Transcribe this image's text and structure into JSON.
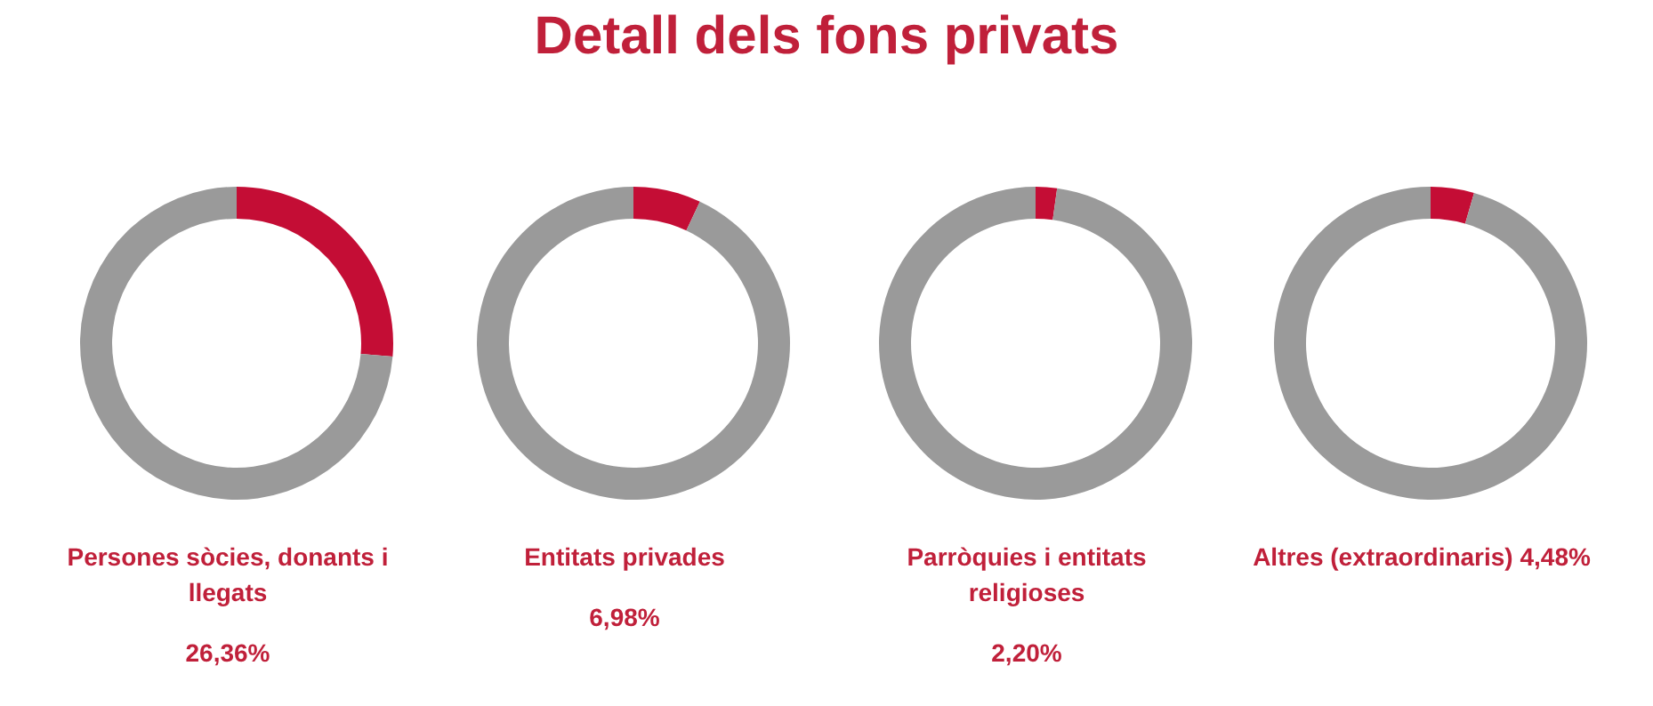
{
  "chart_data": [
    {
      "type": "donut",
      "title": "Detall dels fons privats",
      "xlabel": "Persones sòcies, donants i llegats",
      "categories": [
        null,
        null
      ],
      "values": [
        26.36,
        73.64
      ],
      "colors": [
        "#c40d35",
        "#9a9a9a"
      ],
      "annotations": [
        "26,36%"
      ]
    },
    {
      "type": "donut",
      "xlabel": "Entitats privades",
      "categories": [
        null,
        null
      ],
      "values": [
        6.98,
        93.02
      ],
      "colors": [
        "#c40d35",
        "#9a9a9a"
      ],
      "annotations": [
        "6,98%"
      ]
    },
    {
      "type": "donut",
      "xlabel": "Parròquies i entitats religioses",
      "categories": [
        null,
        null
      ],
      "values": [
        2.2,
        97.8
      ],
      "colors": [
        "#c40d35",
        "#9a9a9a"
      ],
      "annotations": [
        "2,20%"
      ]
    },
    {
      "type": "donut",
      "xlabel": "Altres (extraordinaris)",
      "categories": [
        null,
        null
      ],
      "values": [
        4.48,
        95.52
      ],
      "colors": [
        "#c40d35",
        "#9a9a9a"
      ],
      "annotations": [
        "4,48%"
      ]
    }
  ]
}
